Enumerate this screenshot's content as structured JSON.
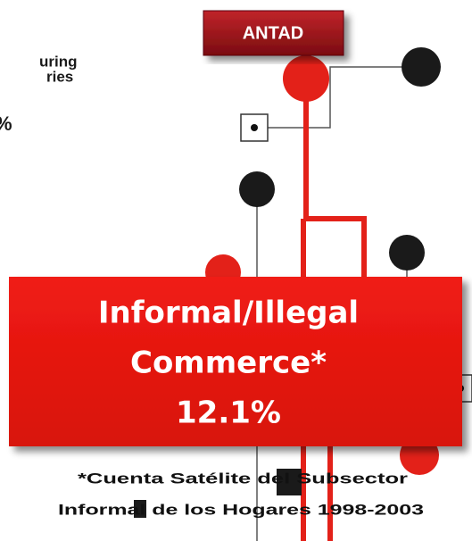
{
  "left_text": {
    "line1": "uring",
    "line2": "ries",
    "line3": "%"
  },
  "badge": "ANTAD",
  "main_box": {
    "line1": "Informal/Illegal",
    "line2": "Commerce*",
    "line3": "12.1%"
  },
  "footnote": {
    "line1": "*Cuenta Satélite del Subsector",
    "line2": "Informal  de los Hogares 1998-2003"
  }
}
